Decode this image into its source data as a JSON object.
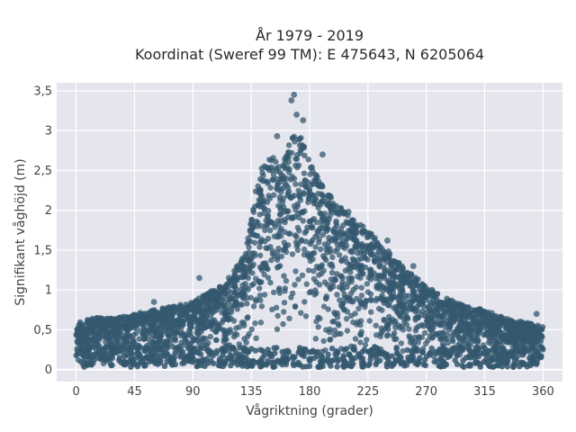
{
  "chart_data": {
    "type": "scatter",
    "title_line1": "År 1979 - 2019",
    "title_line2": "Koordinat (Sweref 99 TM): E 475643, N 6205064",
    "xlabel": "Vågriktning (grader)",
    "ylabel": "Signifikant våghöjd (m)",
    "xlim": [
      -15,
      375
    ],
    "ylim": [
      -0.15,
      3.6
    ],
    "x_ticks": [
      0,
      45,
      90,
      135,
      180,
      225,
      270,
      315,
      360
    ],
    "x_tick_labels": [
      "0",
      "45",
      "90",
      "135",
      "180",
      "225",
      "270",
      "315",
      "360"
    ],
    "y_ticks": [
      0,
      0.5,
      1,
      1.5,
      2,
      2.5,
      3,
      3.5
    ],
    "y_tick_labels": [
      "0",
      "0,5",
      "1",
      "1,5",
      "2",
      "2,5",
      "3",
      "3,5"
    ],
    "grid": true,
    "colors": {
      "plot_background": "#e5e5ee",
      "marker": "#34586f",
      "grid": "#ffffff"
    },
    "envelope": {
      "x": [
        0,
        15,
        30,
        45,
        60,
        75,
        90,
        100,
        110,
        120,
        130,
        135,
        140,
        150,
        160,
        165,
        170,
        175,
        180,
        190,
        200,
        210,
        225,
        240,
        255,
        270,
        285,
        300,
        315,
        330,
        345,
        360
      ],
      "upper": [
        0.6,
        0.65,
        0.65,
        0.7,
        0.75,
        0.8,
        0.85,
        0.95,
        1.05,
        1.2,
        1.45,
        1.9,
        2.45,
        2.7,
        2.6,
        2.9,
        3.1,
        2.9,
        2.6,
        2.3,
        2.1,
        1.95,
        1.75,
        1.5,
        1.25,
        1.05,
        0.9,
        0.8,
        0.75,
        0.65,
        0.6,
        0.55
      ]
    },
    "notable_points": [
      {
        "x": 168,
        "y": 3.45
      },
      {
        "x": 166,
        "y": 3.38
      },
      {
        "x": 170,
        "y": 3.2
      },
      {
        "x": 175,
        "y": 3.13
      },
      {
        "x": 155,
        "y": 2.93
      },
      {
        "x": 190,
        "y": 2.7
      },
      {
        "x": 210,
        "y": 1.98
      },
      {
        "x": 240,
        "y": 1.62
      },
      {
        "x": 260,
        "y": 1.3
      },
      {
        "x": 95,
        "y": 1.15
      },
      {
        "x": 60,
        "y": 0.85
      },
      {
        "x": 355,
        "y": 0.7
      }
    ],
    "y_min": 0.03
  }
}
